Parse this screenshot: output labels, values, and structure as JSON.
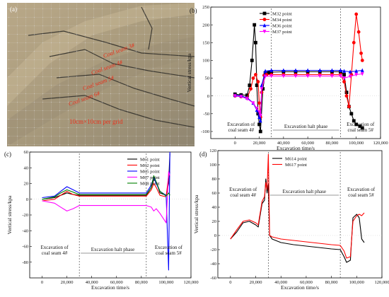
{
  "chart_data": [
    {
      "panel": "(a)",
      "type": "image",
      "annotations": [
        "Coal seam 3#",
        "Coal seam 4#",
        "Coal seam 5#",
        "Coal seam 6#",
        "10cm×10cm per grid"
      ]
    },
    {
      "panel": "(b)",
      "type": "line",
      "xlabel": "Excavation time/s",
      "ylabel": "Vertical stress/kpa",
      "xlim": [
        -20000,
        120000
      ],
      "ylim": [
        -120,
        250
      ],
      "xticks": [
        "0",
        "20,000",
        "40,000",
        "60,000",
        "80,000",
        "100,000",
        "120,000"
      ],
      "yticks": [
        "-100",
        "-50",
        "0",
        "50",
        "100",
        "150",
        "200",
        "250"
      ],
      "legend_position": "top-center",
      "phase_lines": [
        30000,
        87000
      ],
      "phases": [
        "Excavation of coal seam 4#",
        "Excavation halt phase",
        "Excavation of coal seam 5#"
      ],
      "series": [
        {
          "name": "M32 point",
          "color": "#000000",
          "marker": "square",
          "x": [
            0,
            5000,
            10000,
            12000,
            14000,
            16000,
            17000,
            18000,
            19000,
            20000,
            21000,
            23000,
            25000,
            28000,
            30000,
            40000,
            50000,
            60000,
            70000,
            80000,
            87000,
            90000,
            92000,
            94000,
            96000,
            98000,
            100000,
            103000,
            105000
          ],
          "values": [
            5,
            3,
            2,
            30,
            100,
            200,
            150,
            30,
            -50,
            -80,
            -100,
            20,
            65,
            66,
            67,
            68,
            68,
            68,
            68,
            68,
            68,
            60,
            10,
            -30,
            -50,
            -70,
            -80,
            -85,
            -90
          ]
        },
        {
          "name": "M34 point",
          "color": "#ff0000",
          "marker": "circle",
          "x": [
            0,
            5000,
            10000,
            13000,
            15000,
            17000,
            19000,
            20000,
            21000,
            22000,
            24000,
            26000,
            30000,
            40000,
            50000,
            60000,
            70000,
            80000,
            87000,
            90000,
            92000,
            94000,
            96000,
            98000,
            100000,
            102000,
            104000,
            105000
          ],
          "values": [
            0,
            -2,
            -5,
            20,
            50,
            60,
            40,
            -20,
            -60,
            10,
            58,
            60,
            60,
            60,
            60,
            60,
            60,
            60,
            60,
            40,
            0,
            -30,
            60,
            150,
            230,
            180,
            120,
            100
          ]
        },
        {
          "name": "M36 point",
          "color": "#0000ff",
          "marker": "triangle-up",
          "x": [
            0,
            5000,
            10000,
            15000,
            18000,
            20000,
            21000,
            22000,
            25000,
            30000,
            40000,
            50000,
            60000,
            70000,
            80000,
            87000,
            90000,
            95000,
            100000,
            105000
          ],
          "values": [
            2,
            0,
            -5,
            -20,
            -40,
            -60,
            -70,
            30,
            70,
            72,
            72,
            72,
            72,
            72,
            72,
            72,
            70,
            68,
            70,
            72
          ]
        },
        {
          "name": "M37 point",
          "color": "#ff00ff",
          "marker": "triangle-down",
          "x": [
            0,
            5000,
            10000,
            15000,
            18000,
            20000,
            21000,
            22000,
            25000,
            30000,
            40000,
            50000,
            60000,
            70000,
            80000,
            87000,
            90000,
            95000,
            100000,
            105000
          ],
          "values": [
            0,
            -2,
            -8,
            -20,
            -35,
            -45,
            -55,
            20,
            55,
            56,
            56,
            56,
            56,
            56,
            56,
            56,
            50,
            55,
            60,
            62
          ]
        }
      ]
    },
    {
      "panel": "(c)",
      "type": "line",
      "xlabel": "Excavation time/s",
      "ylabel": "Vertical stress/kpa",
      "xlim": [
        -10000,
        120000
      ],
      "ylim": [
        -100,
        60
      ],
      "xticks": [
        "0",
        "20,000",
        "40,000",
        "60,000",
        "80,000",
        "100,000",
        "120,000"
      ],
      "yticks": [
        "-80",
        "-60",
        "-40",
        "-20",
        "0",
        "20",
        "40",
        "60"
      ],
      "legend_position": "top-right",
      "phase_lines": [
        30000,
        84000
      ],
      "phases": [
        "Excavation of coal seam 4#",
        "Excavation halt phase",
        "Excavation of coal seam 5#"
      ],
      "series": [
        {
          "name": "M61 point",
          "color": "#000000",
          "x": [
            0,
            10000,
            15000,
            20000,
            25000,
            30000,
            50000,
            70000,
            84000,
            88000,
            90000,
            92000,
            95000,
            100000,
            102000,
            103000
          ],
          "values": [
            0,
            2,
            5,
            8,
            6,
            5,
            5,
            5,
            5,
            15,
            25,
            22,
            8,
            5,
            20,
            58
          ]
        },
        {
          "name": "M62 point",
          "color": "#ff0000",
          "x": [
            0,
            10000,
            15000,
            20000,
            25000,
            30000,
            50000,
            70000,
            84000,
            88000,
            90000,
            92000,
            95000,
            100000,
            102000,
            103000
          ],
          "values": [
            -2,
            0,
            5,
            10,
            6,
            4,
            4,
            4,
            4,
            12,
            20,
            15,
            5,
            3,
            30,
            35
          ]
        },
        {
          "name": "M65 point",
          "color": "#0000ff",
          "x": [
            0,
            10000,
            15000,
            20000,
            25000,
            30000,
            50000,
            70000,
            84000,
            88000,
            90000,
            92000,
            95000,
            100000,
            102000,
            103000
          ],
          "values": [
            2,
            4,
            10,
            16,
            12,
            8,
            8,
            8,
            8,
            18,
            28,
            20,
            10,
            5,
            -90,
            60
          ]
        },
        {
          "name": "M67 point",
          "color": "#ff00ff",
          "x": [
            0,
            10000,
            15000,
            20000,
            25000,
            30000,
            50000,
            70000,
            84000,
            88000,
            90000,
            92000,
            95000,
            100000,
            102000,
            103000
          ],
          "values": [
            -2,
            -5,
            -10,
            -15,
            -12,
            -8,
            -8,
            -8,
            -8,
            -10,
            -15,
            -12,
            -18,
            -30,
            35,
            30
          ]
        },
        {
          "name": "M68 point",
          "color": "#008000",
          "x": [
            0,
            10000,
            15000,
            20000,
            25000,
            30000,
            50000,
            70000,
            84000,
            88000,
            90000,
            92000,
            95000,
            100000,
            102000,
            103000
          ],
          "values": [
            0,
            3,
            8,
            12,
            9,
            6,
            6,
            6,
            6,
            15,
            30,
            22,
            10,
            4,
            8,
            5
          ]
        }
      ]
    },
    {
      "panel": "(d)",
      "type": "line",
      "xlabel": "Excavation time/s",
      "ylabel": "Vertical stress/kpa",
      "xlim": [
        -10000,
        120000
      ],
      "ylim": [
        -60,
        120
      ],
      "xticks": [
        "0",
        "20,000",
        "40,000",
        "60,000",
        "80,000",
        "100,000",
        "120,000"
      ],
      "yticks": [
        "-60",
        "-40",
        "-20",
        "0",
        "20",
        "40",
        "60",
        "80",
        "100",
        "120"
      ],
      "legend_position": "top-center",
      "phase_lines": [
        30000,
        87000
      ],
      "phases": [
        "Excavation of coal seam 4#",
        "Excavation halt phase",
        "Excavation of coal seam 5#"
      ],
      "series": [
        {
          "name": "M614 point",
          "color": "#000000",
          "x": [
            0,
            5000,
            10000,
            15000,
            20000,
            22000,
            25000,
            27000,
            28000,
            29000,
            30000,
            31000,
            33000,
            40000,
            50000,
            60000,
            70000,
            80000,
            87000,
            90000,
            92000,
            95000,
            97000,
            100000,
            102000,
            104000,
            106000
          ],
          "values": [
            -5,
            5,
            18,
            20,
            15,
            12,
            45,
            50,
            80,
            60,
            72,
            0,
            -5,
            -10,
            -13,
            -15,
            -17,
            -19,
            -20,
            -30,
            -38,
            -35,
            25,
            30,
            25,
            -5,
            -10
          ]
        },
        {
          "name": "M617 point",
          "color": "#ff0000",
          "x": [
            0,
            5000,
            10000,
            15000,
            20000,
            22000,
            25000,
            27000,
            28000,
            29000,
            30000,
            31000,
            33000,
            40000,
            50000,
            60000,
            70000,
            80000,
            87000,
            90000,
            92000,
            95000,
            97000,
            100000,
            102000,
            104000,
            106000
          ],
          "values": [
            -5,
            8,
            20,
            22,
            18,
            15,
            48,
            55,
            75,
            65,
            115,
            0,
            -2,
            -5,
            -7,
            -9,
            -11,
            -13,
            -14,
            -22,
            -32,
            -30,
            20,
            28,
            30,
            28,
            32
          ]
        }
      ]
    }
  ]
}
